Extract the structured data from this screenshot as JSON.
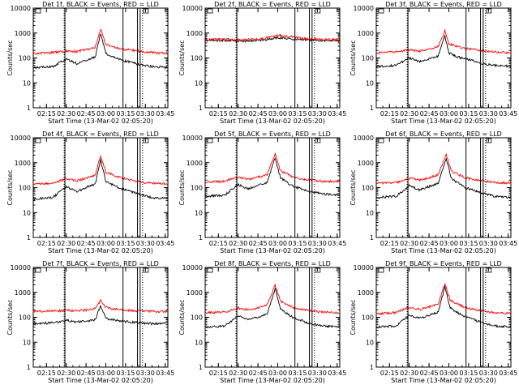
{
  "figure": {
    "background": "#ffffff",
    "axis_color": "#000000",
    "xtick_labels": [
      "02:15",
      "02:30",
      "02:45",
      "03:00",
      "03:15",
      "03:30",
      "03:45"
    ],
    "ytick_labels": [
      "1",
      "10",
      "100",
      "1000",
      "10000"
    ],
    "xlabel": "Start Time (13-Mar-02 02:05:20)",
    "ylabel": "Counts/sec"
  },
  "chart_data": [
    {
      "type": "line",
      "title": "Det 1f, BLACK = Events, RED = LLD",
      "log_y": true,
      "ylim": [
        1,
        10000
      ],
      "x": [
        "02:05",
        "02:20",
        "02:30",
        "02:38",
        "02:45",
        "02:52",
        "02:56",
        "03:00",
        "03:05",
        "03:12",
        "03:18",
        "03:25",
        "03:35",
        "03:50"
      ],
      "series": [
        {
          "name": "Events",
          "color": "#000000",
          "values": [
            40,
            45,
            90,
            60,
            80,
            110,
            950,
            150,
            110,
            80,
            70,
            55,
            45,
            40
          ]
        },
        {
          "name": "LLD",
          "color": "#ff0000",
          "values": [
            150,
            165,
            190,
            180,
            210,
            270,
            1500,
            350,
            280,
            220,
            210,
            190,
            165,
            150
          ]
        }
      ],
      "markers": [
        "02:29",
        "03:13",
        "03:24",
        "03:26"
      ]
    },
    {
      "type": "line",
      "title": "Det 2f, BLACK = Events, RED = LLD",
      "log_y": true,
      "ylim": [
        1,
        10000
      ],
      "x": [
        "02:05",
        "02:20",
        "02:35",
        "02:50",
        "03:00",
        "03:10",
        "03:20",
        "03:35",
        "03:50"
      ],
      "series": [
        {
          "name": "Events",
          "color": "#000000",
          "values": [
            500,
            510,
            480,
            520,
            650,
            580,
            540,
            500,
            490
          ]
        },
        {
          "name": "LLD",
          "color": "#ff0000",
          "values": [
            550,
            560,
            530,
            600,
            820,
            700,
            600,
            560,
            550
          ]
        }
      ],
      "markers": [
        "02:29",
        "03:13",
        "03:24",
        "03:26"
      ]
    },
    {
      "type": "line",
      "title": "Det 3f, BLACK = Events, RED = LLD",
      "log_y": true,
      "ylim": [
        1,
        10000
      ],
      "x": [
        "02:05",
        "02:20",
        "02:30",
        "02:38",
        "02:45",
        "02:52",
        "02:57",
        "03:00",
        "03:05",
        "03:12",
        "03:18",
        "03:25",
        "03:35",
        "03:50"
      ],
      "series": [
        {
          "name": "Events",
          "color": "#000000",
          "values": [
            45,
            50,
            100,
            70,
            90,
            120,
            800,
            160,
            120,
            90,
            80,
            60,
            50,
            45
          ]
        },
        {
          "name": "LLD",
          "color": "#ff0000",
          "values": [
            160,
            175,
            210,
            190,
            230,
            290,
            1200,
            380,
            300,
            240,
            220,
            200,
            170,
            160
          ]
        }
      ],
      "markers": [
        "02:29",
        "03:13",
        "03:24",
        "03:26"
      ]
    },
    {
      "type": "line",
      "title": "Det 4f, BLACK = Events, RED = LLD",
      "log_y": true,
      "ylim": [
        1,
        10000
      ],
      "x": [
        "02:05",
        "02:20",
        "02:30",
        "02:38",
        "02:45",
        "02:52",
        "02:56",
        "03:00",
        "03:05",
        "03:12",
        "03:18",
        "03:25",
        "03:35",
        "03:50"
      ],
      "series": [
        {
          "name": "Events",
          "color": "#000000",
          "values": [
            35,
            40,
            110,
            70,
            100,
            140,
            1300,
            180,
            130,
            90,
            70,
            55,
            40,
            35
          ]
        },
        {
          "name": "LLD",
          "color": "#ff0000",
          "values": [
            140,
            150,
            230,
            190,
            240,
            320,
            2000,
            420,
            330,
            240,
            200,
            170,
            150,
            140
          ]
        }
      ],
      "markers": [
        "02:29",
        "03:13",
        "03:24",
        "03:26"
      ]
    },
    {
      "type": "line",
      "title": "Det 5f, BLACK = Events, RED = LLD",
      "log_y": true,
      "ylim": [
        1,
        10000
      ],
      "x": [
        "02:05",
        "02:20",
        "02:30",
        "02:38",
        "02:45",
        "02:52",
        "02:58",
        "03:02",
        "03:07",
        "03:12",
        "03:18",
        "03:25",
        "03:35",
        "03:50"
      ],
      "series": [
        {
          "name": "Events",
          "color": "#000000",
          "values": [
            45,
            50,
            130,
            90,
            120,
            160,
            1600,
            250,
            160,
            110,
            90,
            70,
            55,
            50
          ]
        },
        {
          "name": "LLD",
          "color": "#ff0000",
          "values": [
            170,
            180,
            260,
            210,
            260,
            340,
            2200,
            480,
            350,
            260,
            220,
            200,
            180,
            170
          ]
        }
      ],
      "markers": [
        "02:29",
        "03:13",
        "03:24",
        "03:26"
      ]
    },
    {
      "type": "line",
      "title": "Det 6f, BLACK = Events, RED = LLD",
      "log_y": true,
      "ylim": [
        1,
        10000
      ],
      "x": [
        "02:05",
        "02:20",
        "02:30",
        "02:38",
        "02:45",
        "02:52",
        "02:58",
        "03:02",
        "03:07",
        "03:12",
        "03:18",
        "03:25",
        "03:35",
        "03:50"
      ],
      "series": [
        {
          "name": "Events",
          "color": "#000000",
          "values": [
            40,
            45,
            120,
            80,
            110,
            150,
            1500,
            230,
            150,
            100,
            80,
            60,
            45,
            40
          ]
        },
        {
          "name": "LLD",
          "color": "#ff0000",
          "values": [
            150,
            160,
            240,
            200,
            250,
            330,
            2100,
            460,
            340,
            250,
            210,
            190,
            160,
            150
          ]
        }
      ],
      "markers": [
        "02:29",
        "03:13",
        "03:24",
        "03:26"
      ]
    },
    {
      "type": "line",
      "title": "Det 7f, BLACK = Events, RED = LLD",
      "log_y": true,
      "ylim": [
        1,
        10000
      ],
      "x": [
        "02:05",
        "02:20",
        "02:30",
        "02:38",
        "02:45",
        "02:52",
        "02:56",
        "03:00",
        "03:05",
        "03:12",
        "03:18",
        "03:25",
        "03:35",
        "03:50"
      ],
      "series": [
        {
          "name": "Events",
          "color": "#000000",
          "values": [
            55,
            60,
            75,
            65,
            70,
            80,
            300,
            90,
            80,
            70,
            65,
            60,
            55,
            55
          ]
        },
        {
          "name": "LLD",
          "color": "#ff0000",
          "values": [
            170,
            175,
            190,
            185,
            195,
            220,
            480,
            250,
            220,
            200,
            190,
            180,
            175,
            170
          ]
        }
      ],
      "markers": [
        "02:29",
        "03:13",
        "03:24",
        "03:26"
      ]
    },
    {
      "type": "line",
      "title": "Det 8f, BLACK = Events, RED = LLD",
      "log_y": true,
      "ylim": [
        1,
        10000
      ],
      "x": [
        "02:05",
        "02:20",
        "02:30",
        "02:38",
        "02:45",
        "02:52",
        "02:58",
        "03:02",
        "03:07",
        "03:12",
        "03:18",
        "03:25",
        "03:35",
        "03:50"
      ],
      "series": [
        {
          "name": "Events",
          "color": "#000000",
          "values": [
            40,
            45,
            110,
            80,
            100,
            140,
            1400,
            220,
            140,
            95,
            75,
            55,
            45,
            40
          ]
        },
        {
          "name": "LLD",
          "color": "#ff0000",
          "values": [
            150,
            165,
            230,
            200,
            240,
            320,
            1900,
            440,
            330,
            240,
            210,
            180,
            160,
            150
          ]
        }
      ],
      "markers": [
        "02:29",
        "03:13",
        "03:24",
        "03:26"
      ]
    },
    {
      "type": "line",
      "title": "Det 9f, BLACK = Events, RED = LLD",
      "log_y": true,
      "ylim": [
        1,
        10000
      ],
      "x": [
        "02:05",
        "02:20",
        "02:30",
        "02:38",
        "02:45",
        "02:52",
        "02:57",
        "03:01",
        "03:06",
        "03:12",
        "03:18",
        "03:25",
        "03:35",
        "03:50"
      ],
      "series": [
        {
          "name": "Events",
          "color": "#000000",
          "values": [
            40,
            45,
            120,
            90,
            120,
            160,
            1700,
            240,
            160,
            110,
            85,
            60,
            45,
            40
          ]
        },
        {
          "name": "LLD",
          "color": "#ff0000",
          "values": [
            140,
            155,
            250,
            210,
            260,
            340,
            2300,
            470,
            350,
            250,
            210,
            180,
            150,
            140
          ]
        }
      ],
      "markers": [
        "02:29",
        "03:13",
        "03:24",
        "03:26"
      ]
    }
  ]
}
